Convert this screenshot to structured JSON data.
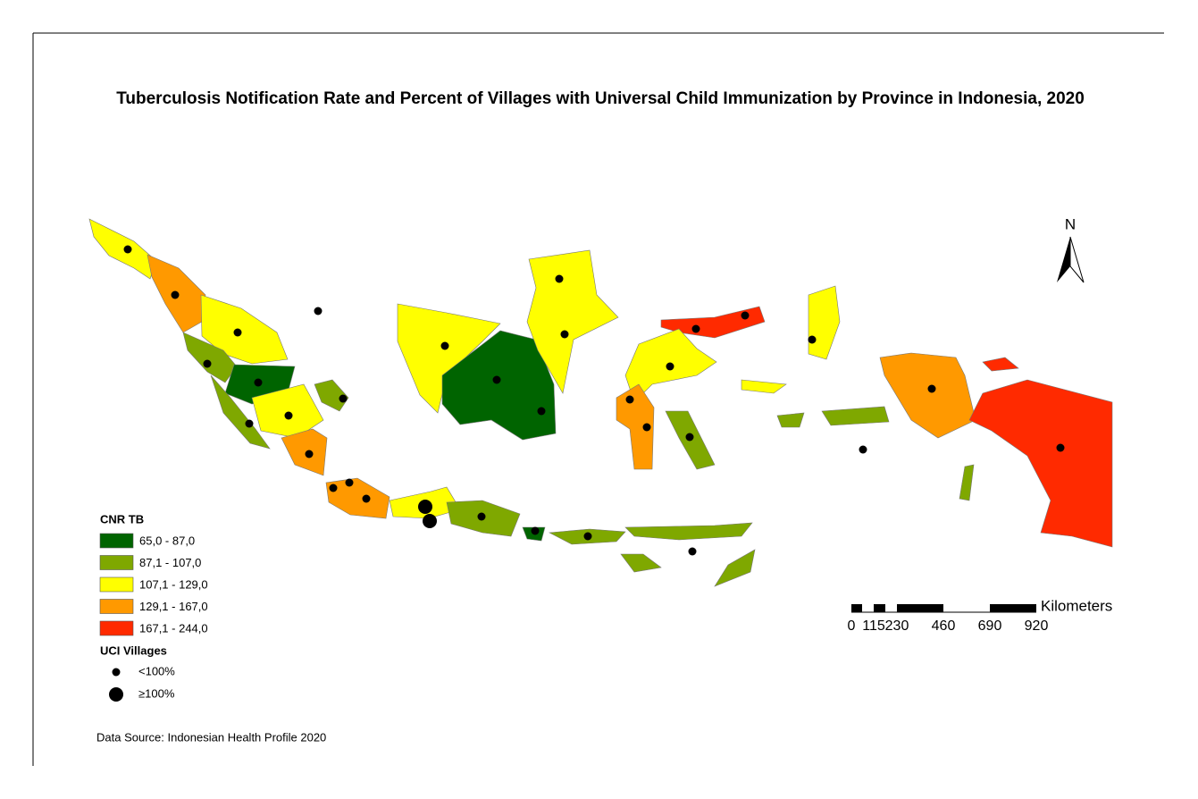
{
  "title": "Tuberculosis Notification Rate and Percent of Villages with Universal Child Immunization by Province in Indonesia, 2020",
  "legend": {
    "cnr_title": "CNR TB",
    "classes": [
      {
        "label": "65,0 - 87,0",
        "color": "#006400"
      },
      {
        "label": "87,1 - 107,0",
        "color": "#7fa800"
      },
      {
        "label": "107,1 - 129,0",
        "color": "#ffff00"
      },
      {
        "label": "129,1 - 167,0",
        "color": "#ff9900"
      },
      {
        "label": "167,1 - 244,0",
        "color": "#ff2a00"
      }
    ],
    "uci_title": "UCI Villages",
    "uci_items": [
      "<100%",
      "≥100%"
    ]
  },
  "north": "N",
  "scale": {
    "unit": "Kilometers",
    "labels": [
      "0",
      "115",
      "230",
      "460",
      "690",
      "920"
    ]
  },
  "source": "Data Source: Indonesian Health Profile 2020"
}
